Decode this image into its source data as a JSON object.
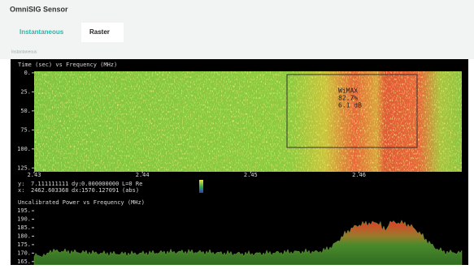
{
  "header": {
    "title": "OmniSIG Sensor"
  },
  "tabs": [
    "Instantaneous",
    "Raster"
  ],
  "section_label": "Instantaneous",
  "spectrogram": {
    "title": "Time (sec) vs Frequency (MHz)",
    "xlim": [
      2.43,
      2.4695
    ],
    "ylim": [
      -2,
      130
    ],
    "xticks": [
      2.43,
      2.44,
      2.45,
      2.46
    ],
    "yticks": [
      {
        "value": 0,
        "label": "0."
      },
      {
        "value": 25,
        "label": "25."
      },
      {
        "value": 50,
        "label": "50."
      },
      {
        "value": 75,
        "label": "75."
      },
      {
        "value": 100,
        "label": "100."
      },
      {
        "value": 125,
        "label": "125."
      }
    ],
    "annotation": [
      "WiMAX",
      "82.7%",
      "6.1 dB"
    ],
    "readout": [
      [
        "y:",
        "7.111111111",
        "dy:",
        "0.000000000",
        "L=0 Re"
      ],
      [
        "x:",
        "2462.603368",
        "dx:",
        "1570.127091",
        "(abs)"
      ]
    ]
  },
  "spectrum": {
    "title": "Uncalibrated Power vs Frequency (MHz)",
    "ylim": [
      163,
      196
    ],
    "yticks": [
      {
        "value": 195,
        "label": "195."
      },
      {
        "value": 190,
        "label": "190."
      },
      {
        "value": 185,
        "label": "185."
      },
      {
        "value": 180,
        "label": "180."
      },
      {
        "value": 175,
        "label": "175."
      },
      {
        "value": 170,
        "label": "170."
      },
      {
        "value": 165,
        "label": "165."
      }
    ]
  }
}
